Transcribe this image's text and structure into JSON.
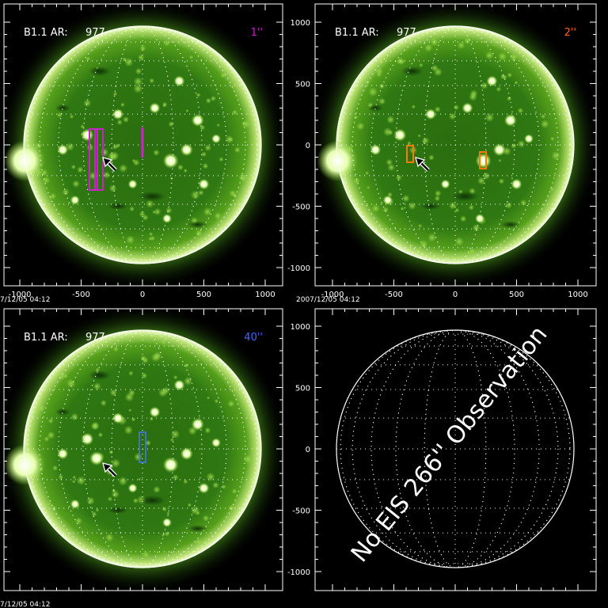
{
  "panels": [
    {
      "header_left": "B1.1 AR:",
      "header_num": "977",
      "header_right": "1''",
      "right_color": "#cc22cc",
      "timestamp": "7/12/05 04:12",
      "show_x_ticks": true,
      "show_y_ticks": false,
      "has_image": true,
      "slit_color": "#cc22cc"
    },
    {
      "header_left": "B1.1 AR:",
      "header_num": "977",
      "header_right": "2''",
      "right_color": "#ff6600",
      "timestamp": "2007/12/05 04:12",
      "show_x_ticks": true,
      "show_y_ticks": true,
      "has_image": true,
      "slit_color": "#ff7a00"
    },
    {
      "header_left": "B1.1 AR:",
      "header_num": "977",
      "header_right": "40''",
      "right_color": "#4466ff",
      "timestamp": "7/12/05 04:12",
      "show_x_ticks": false,
      "show_y_ticks": false,
      "has_image": true,
      "slit_color": "#4477ff"
    },
    {
      "header_left": "",
      "header_num": "",
      "header_right": "",
      "right_color": "#ffffff",
      "timestamp": "",
      "show_x_ticks": false,
      "show_y_ticks": true,
      "has_image": false,
      "overlay_text": "No EIS 266'' Observation"
    }
  ],
  "x_tick_labels": [
    "-1000",
    "-500",
    "0",
    "500",
    "1000"
  ],
  "y_tick_labels": [
    "1000",
    "500",
    "0",
    "-500",
    "-1000"
  ],
  "colors": {
    "disk": "#2f7a10",
    "limb": "#e8ffb0",
    "corona": "#5a9a1a",
    "grid": "#ffffff"
  }
}
